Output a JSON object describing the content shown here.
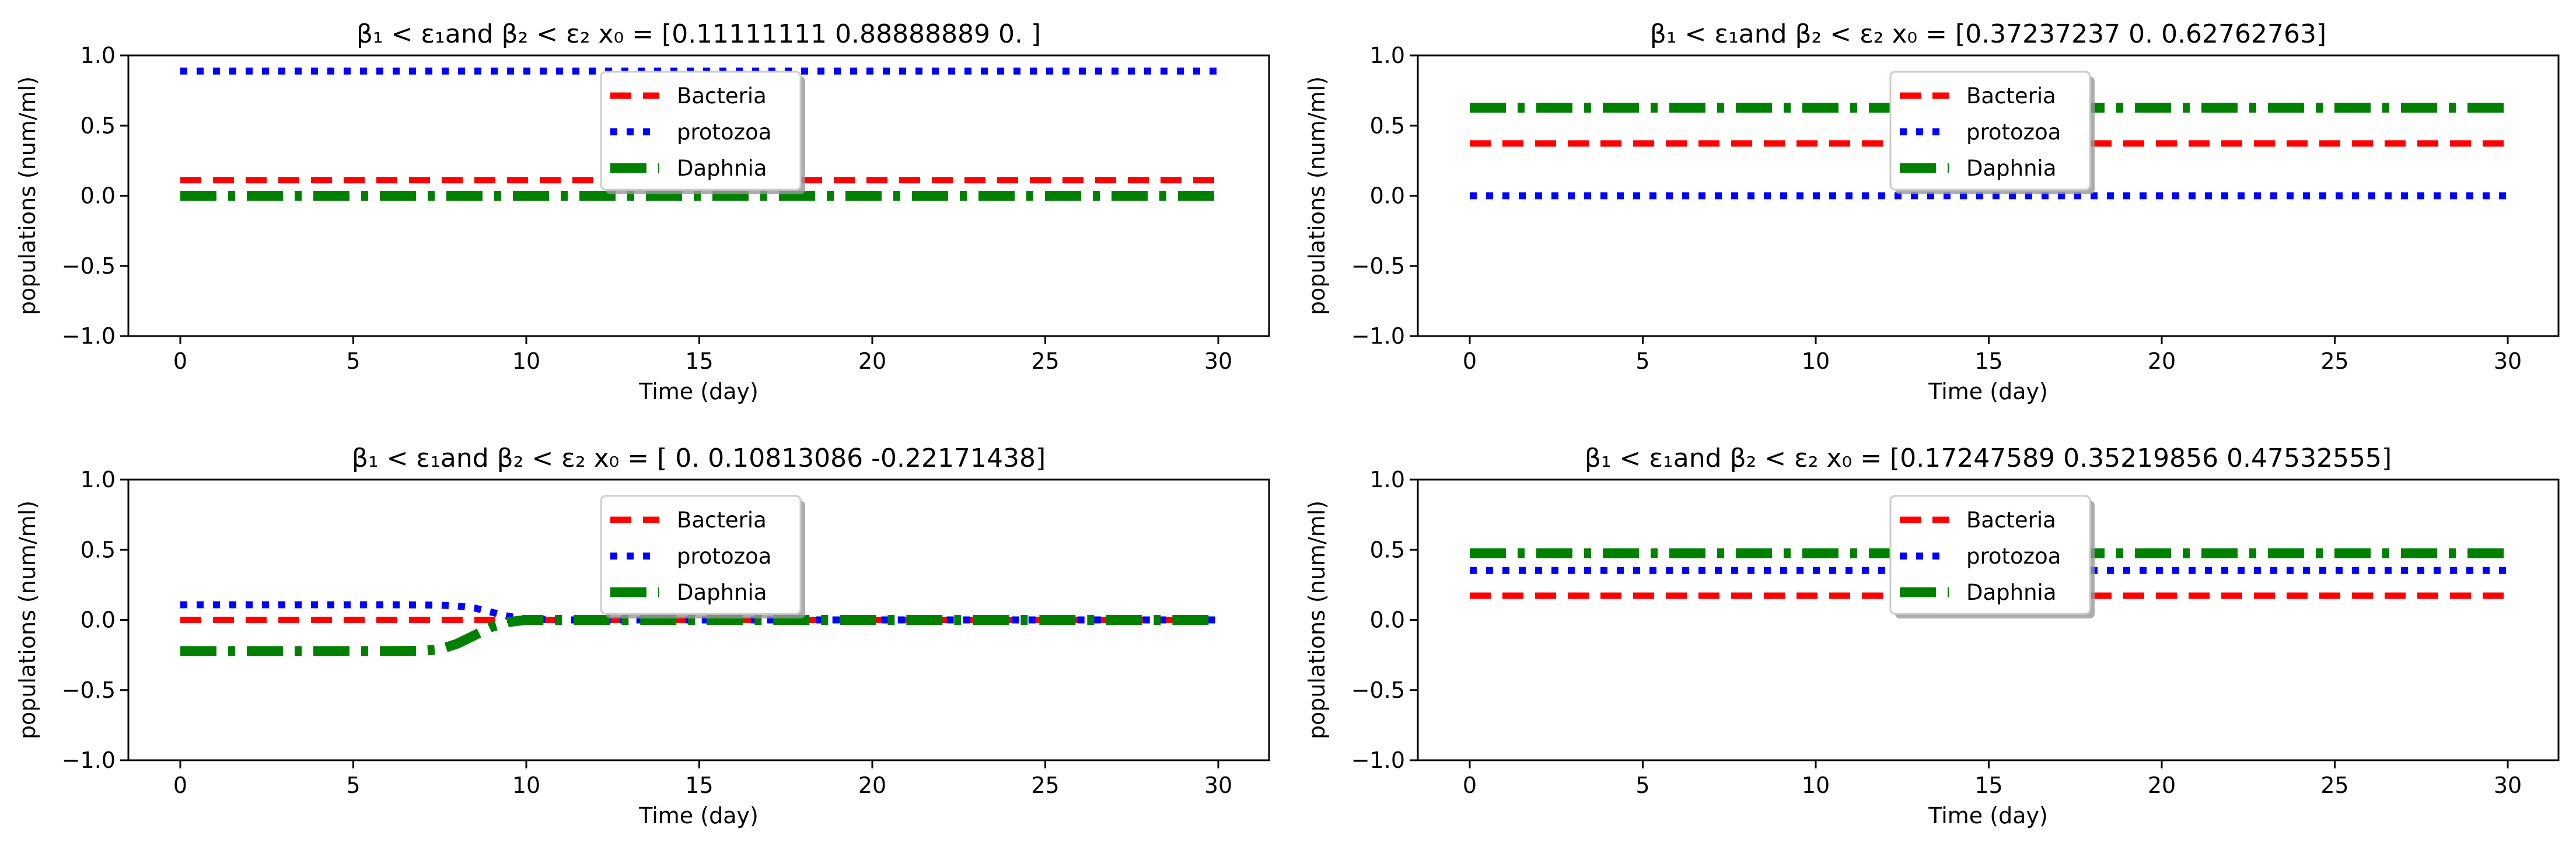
{
  "chart_data": [
    {
      "type": "line",
      "title": "β₁ < ε₁and β₂ < ε₂      x₀ = [0.11111111 0.88888889 0.        ]",
      "xlabel": "Time  (day)",
      "ylabel": "populations (num/ml)",
      "xlim": [
        0,
        30
      ],
      "ylim": [
        -1.0,
        1.0
      ],
      "xticks": [
        "0",
        "5",
        "10",
        "15",
        "20",
        "25",
        "30"
      ],
      "yticks": [
        "1.0",
        "0.5",
        "0.0",
        "−0.5",
        "−1.0"
      ],
      "legend": "upper-center",
      "x": [
        0,
        30
      ],
      "series": [
        {
          "name": "Bacteria",
          "color": "#ff0000",
          "style": "dashed",
          "values": [
            0.11111111,
            0.11111111
          ]
        },
        {
          "name": "protozoa",
          "color": "#0000ff",
          "style": "dotted",
          "values": [
            0.88888889,
            0.88888889
          ]
        },
        {
          "name": "Daphnia",
          "color": "#008000",
          "style": "dashdot",
          "values": [
            0,
            0
          ]
        }
      ]
    },
    {
      "type": "line",
      "title": "β₁ < ε₁and β₂ < ε₂      x₀ = [0.37237237 0.         0.62762763]",
      "xlabel": "Time  (day)",
      "ylabel": "populations (num/ml)",
      "xlim": [
        0,
        30
      ],
      "ylim": [
        -1.0,
        1.0
      ],
      "xticks": [
        "0",
        "5",
        "10",
        "15",
        "20",
        "25",
        "30"
      ],
      "yticks": [
        "1.0",
        "0.5",
        "0.0",
        "−0.5",
        "−1.0"
      ],
      "legend": "upper-center",
      "x": [
        0,
        30
      ],
      "series": [
        {
          "name": "Bacteria",
          "color": "#ff0000",
          "style": "dashed",
          "values": [
            0.37237237,
            0.37237237
          ]
        },
        {
          "name": "protozoa",
          "color": "#0000ff",
          "style": "dotted",
          "values": [
            0,
            0
          ]
        },
        {
          "name": "Daphnia",
          "color": "#008000",
          "style": "dashdot",
          "values": [
            0.62762763,
            0.62762763
          ]
        }
      ]
    },
    {
      "type": "line",
      "title": "β₁ < ε₁and β₂ < ε₂      x₀ = [ 0.          0.10813086 -0.22171438]",
      "xlabel": "Time  (day)",
      "ylabel": "populations (num/ml)",
      "xlim": [
        0,
        30
      ],
      "ylim": [
        -1.0,
        1.0
      ],
      "xticks": [
        "0",
        "5",
        "10",
        "15",
        "20",
        "25",
        "30"
      ],
      "yticks": [
        "1.0",
        "0.5",
        "0.0",
        "−0.5",
        "−1.0"
      ],
      "legend": "upper-center",
      "x": [
        0,
        6,
        7,
        7.5,
        8,
        8.5,
        9,
        9.5,
        10,
        11,
        30
      ],
      "series": [
        {
          "name": "Bacteria",
          "color": "#ff0000",
          "style": "dashed",
          "values": [
            0,
            0,
            0,
            0,
            0,
            0,
            0,
            0,
            0,
            0,
            0
          ]
        },
        {
          "name": "protozoa",
          "color": "#0000ff",
          "style": "dotted",
          "values": [
            0.108,
            0.108,
            0.107,
            0.105,
            0.1,
            0.085,
            0.055,
            0.025,
            0.008,
            0,
            0
          ]
        },
        {
          "name": "Daphnia",
          "color": "#008000",
          "style": "dashdot",
          "values": [
            -0.222,
            -0.222,
            -0.22,
            -0.21,
            -0.17,
            -0.11,
            -0.05,
            -0.015,
            0,
            0,
            0
          ]
        }
      ]
    },
    {
      "type": "line",
      "title": "β₁ < ε₁and β₂ < ε₂      x₀ = [0.17247589 0.35219856 0.47532555]",
      "xlabel": "Time  (day)",
      "ylabel": "populations (num/ml)",
      "xlim": [
        0,
        30
      ],
      "ylim": [
        -1.0,
        1.0
      ],
      "xticks": [
        "0",
        "5",
        "10",
        "15",
        "20",
        "25",
        "30"
      ],
      "yticks": [
        "1.0",
        "0.5",
        "0.0",
        "−0.5",
        "−1.0"
      ],
      "legend": "upper-center",
      "x": [
        0,
        30
      ],
      "series": [
        {
          "name": "Bacteria",
          "color": "#ff0000",
          "style": "dashed",
          "values": [
            0.17247589,
            0.17247589
          ]
        },
        {
          "name": "protozoa",
          "color": "#0000ff",
          "style": "dotted",
          "values": [
            0.35219856,
            0.35219856
          ]
        },
        {
          "name": "Daphnia",
          "color": "#008000",
          "style": "dashdot",
          "values": [
            0.47532555,
            0.47532555
          ]
        }
      ]
    }
  ]
}
